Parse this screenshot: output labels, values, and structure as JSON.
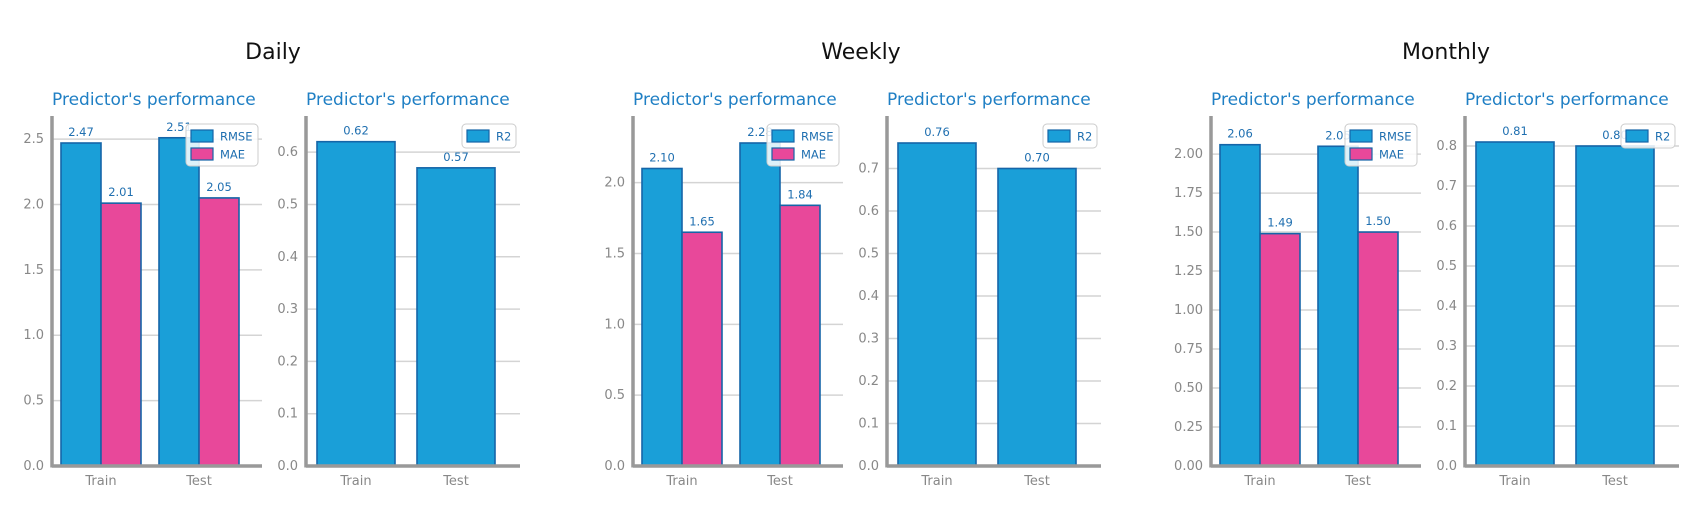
{
  "chart_data": [
    {
      "group": "Daily",
      "title": "Predictor's performance",
      "type": "bar",
      "categories": [
        "Train",
        "Test"
      ],
      "series": [
        {
          "name": "RMSE",
          "values": [
            2.47,
            2.51
          ]
        },
        {
          "name": "MAE",
          "values": [
            2.01,
            2.05
          ]
        }
      ],
      "ylim": [
        0,
        2.6
      ],
      "yticks": [
        "0.0",
        "0.5",
        "1.0",
        "1.5",
        "2.0",
        "2.5"
      ],
      "legend": "top-right"
    },
    {
      "group": "Daily",
      "title": "Predictor's performance",
      "type": "bar",
      "categories": [
        "Train",
        "Test"
      ],
      "series": [
        {
          "name": "R2",
          "values": [
            0.62,
            0.57
          ]
        }
      ],
      "ylim": [
        0,
        0.65
      ],
      "yticks": [
        "0.0",
        "0.1",
        "0.2",
        "0.3",
        "0.4",
        "0.5",
        "0.6"
      ],
      "legend": "top-right"
    },
    {
      "group": "Weekly",
      "title": "Predictor's performance",
      "type": "bar",
      "categories": [
        "Train",
        "Test"
      ],
      "series": [
        {
          "name": "RMSE",
          "values": [
            2.1,
            2.28
          ]
        },
        {
          "name": "MAE",
          "values": [
            1.65,
            1.84
          ]
        }
      ],
      "ylim": [
        0,
        2.4
      ],
      "yticks": [
        "0.0",
        "0.5",
        "1.0",
        "1.5",
        "2.0"
      ],
      "legend": "top-right"
    },
    {
      "group": "Weekly",
      "title": "Predictor's performance",
      "type": "bar",
      "categories": [
        "Train",
        "Test"
      ],
      "series": [
        {
          "name": "R2",
          "values": [
            0.76,
            0.7
          ]
        }
      ],
      "ylim": [
        0,
        0.8
      ],
      "yticks": [
        "0.0",
        "0.1",
        "0.2",
        "0.3",
        "0.4",
        "0.5",
        "0.6",
        "0.7"
      ],
      "legend": "top-right"
    },
    {
      "group": "Monthly",
      "title": "Predictor's performance",
      "type": "bar",
      "categories": [
        "Train",
        "Test"
      ],
      "series": [
        {
          "name": "RMSE",
          "values": [
            2.06,
            2.05
          ]
        },
        {
          "name": "MAE",
          "values": [
            1.49,
            1.5
          ]
        }
      ],
      "ylim": [
        0,
        2.18
      ],
      "yticks": [
        "0.00",
        "0.25",
        "0.50",
        "0.75",
        "1.00",
        "1.25",
        "1.50",
        "1.75",
        "2.00"
      ],
      "legend": "top-right"
    },
    {
      "group": "Monthly",
      "title": "Predictor's performance",
      "type": "bar",
      "categories": [
        "Train",
        "Test"
      ],
      "series": [
        {
          "name": "R2",
          "values": [
            0.81,
            0.8
          ]
        }
      ],
      "ylim": [
        0,
        0.85
      ],
      "yticks": [
        "0.0",
        "0.1",
        "0.2",
        "0.3",
        "0.4",
        "0.5",
        "0.6",
        "0.7",
        "0.8"
      ],
      "legend": "top-right"
    }
  ],
  "groups": [
    "Daily",
    "Weekly",
    "Monthly"
  ],
  "colors": {
    "primary": "#1a9fd8",
    "secondary": "#e8489a",
    "edge": "#1565a8",
    "title": "#1f7fc4",
    "axis": "#999999",
    "grid": "#d4d4d4"
  }
}
